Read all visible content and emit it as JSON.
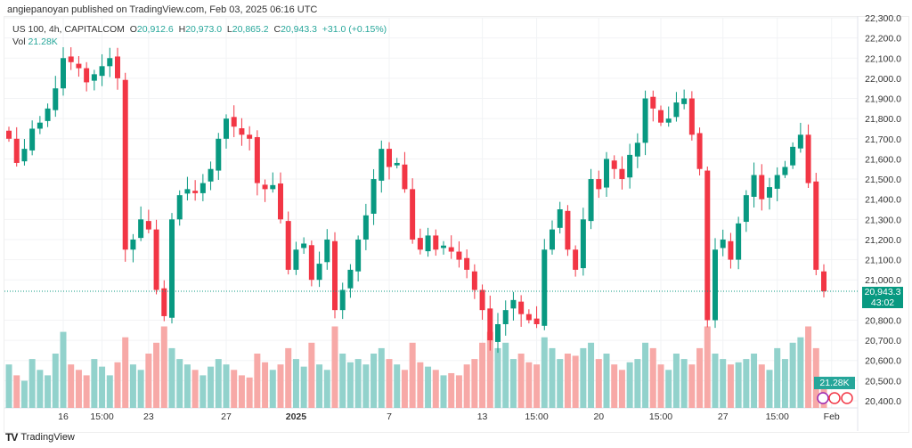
{
  "header": {
    "published": "angiepanoyan published on TradingView.com, Feb 03, 2025 06:16 UTC"
  },
  "legend": {
    "symbol": "US 100, 4h, CAPITALCOM",
    "o_label": "O",
    "o": "20,912.6",
    "h_label": "H",
    "h": "20,973.0",
    "l_label": "L",
    "l": "20,865.2",
    "c_label": "C",
    "c": "20,943.3",
    "change": "+31.0 (+0.15%)",
    "vol_label": "Vol",
    "vol": "21.28K"
  },
  "price_label": {
    "price": "20,943.3",
    "countdown": "43:02"
  },
  "volume_label": "21.28K",
  "footer": {
    "brand": "TradingView"
  },
  "colors": {
    "up": "#089981",
    "down": "#f23645",
    "vol_up": "#92d2cc",
    "vol_down": "#f7a9a7"
  },
  "chart_data": {
    "type": "candlestick",
    "title": "US 100, 4h, CAPITALCOM",
    "ylim": [
      20400,
      22300
    ],
    "y_ticks": [
      22300,
      22200,
      22100,
      22000,
      21900,
      21800,
      21700,
      21600,
      21500,
      21400,
      21300,
      21200,
      21100,
      21000,
      20800,
      20700,
      20600,
      20500,
      20400
    ],
    "y_tick_labels": [
      "22,300.0",
      "22,200.0",
      "22,100.0",
      "22,000.0",
      "21,900.0",
      "21,800.0",
      "21,700.0",
      "21,600.0",
      "21,500.0",
      "21,400.0",
      "21,300.0",
      "21,200.0",
      "21,100.0",
      "21,000.0",
      "20,800.0",
      "20,700.0",
      "20,600.0",
      "20,500.0",
      "20,400.0"
    ],
    "x_tick_labels": [
      {
        "label": "16",
        "i": 7
      },
      {
        "label": "15:00",
        "i": 12
      },
      {
        "label": "23",
        "i": 18
      },
      {
        "label": "27",
        "i": 28
      },
      {
        "label": "2025",
        "i": 37,
        "bold": true
      },
      {
        "label": "7",
        "i": 49
      },
      {
        "label": "13",
        "i": 61
      },
      {
        "label": "15:00",
        "i": 68
      },
      {
        "label": "20",
        "i": 76
      },
      {
        "label": "15:00",
        "i": 84
      },
      {
        "label": "27",
        "i": 92
      },
      {
        "label": "15:00",
        "i": 99
      },
      {
        "label": "Feb",
        "i": 106
      }
    ],
    "closes": [
      21700,
      21580,
      21650,
      21750,
      21780,
      21850,
      21950,
      22100,
      22080,
      22050,
      21980,
      22020,
      22060,
      22100,
      22000,
      21150,
      21200,
      21300,
      21250,
      20950,
      20820,
      21300,
      21420,
      21450,
      21430,
      21480,
      21550,
      21700,
      21800,
      21760,
      21720,
      21700,
      21480,
      21450,
      21470,
      21300,
      21050,
      21150,
      21180,
      21000,
      21080,
      21200,
      20850,
      20950,
      21050,
      21200,
      21320,
      21500,
      21650,
      21560,
      21580,
      21450,
      21200,
      21150,
      21220,
      21150,
      21170,
      21140,
      21100,
      21050,
      20950,
      20850,
      20700,
      20780,
      20850,
      20900,
      20830,
      20800,
      20780,
      21150,
      21250,
      21350,
      21150,
      21050,
      21300,
      21500,
      21450,
      21600,
      21550,
      21500,
      21620,
      21680,
      21900,
      21850,
      21780,
      21800,
      21880,
      21900,
      21720,
      21550,
      20800,
      21150,
      21200,
      21100,
      21280,
      21420,
      21520,
      21400,
      21460,
      21520,
      21560,
      21660,
      21720,
      21480,
      21050,
      20943.3
    ],
    "volumes_k": [
      40,
      30,
      25,
      45,
      35,
      30,
      50,
      70,
      40,
      35,
      30,
      45,
      38,
      30,
      42,
      65,
      40,
      35,
      50,
      60,
      75,
      55,
      45,
      40,
      35,
      30,
      38,
      45,
      40,
      35,
      30,
      28,
      50,
      42,
      35,
      40,
      55,
      45,
      38,
      60,
      40,
      35,
      75,
      50,
      42,
      45,
      40,
      50,
      55,
      45,
      40,
      35,
      60,
      42,
      38,
      35,
      30,
      32,
      30,
      40,
      45,
      60,
      70,
      55,
      60,
      45,
      50,
      42,
      40,
      65,
      55,
      45,
      50,
      48,
      55,
      60,
      45,
      50,
      40,
      35,
      42,
      45,
      60,
      55,
      40,
      35,
      50,
      45,
      40,
      55,
      75,
      50,
      45,
      40,
      42,
      45,
      50,
      40,
      35,
      55,
      45,
      60,
      65,
      75,
      55,
      21.28
    ]
  }
}
